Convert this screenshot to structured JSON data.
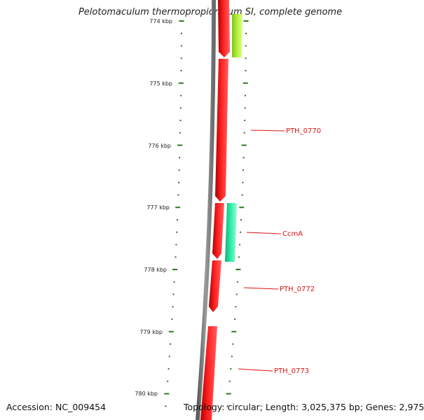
{
  "title": "Pelotomaculum thermopropionicum SI, complete genome",
  "accession": "Accession: NC_009454",
  "stats": "Topology: circular; Length: 3,025,375 bp; Genes: 2,975",
  "colors": {
    "backbone": "#888888",
    "forward_gene": "#ff1a1a",
    "reverse_gene_ccma": "#22e6a0",
    "reverse_gene_light": "#a6e62e",
    "tick": "#2a7a1a",
    "label": "#dd1111"
  },
  "scale_labels": [
    "774 kbp",
    "775 kbp",
    "776 kbp",
    "777 kbp",
    "778 kbp",
    "779 kbp",
    "780 kbp"
  ],
  "gene_labels": [
    "PTH_0770",
    "CcmA",
    "PTH_0772",
    "PTH_0773"
  ]
}
